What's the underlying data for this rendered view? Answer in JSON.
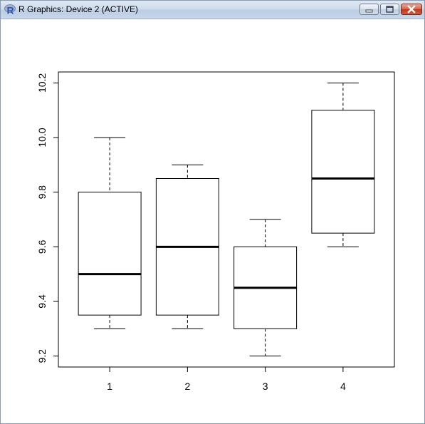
{
  "window": {
    "title": "R Graphics: Device 2 (ACTIVE)",
    "app_icon": "r-logo-icon",
    "buttons": [
      {
        "name": "minimize-button",
        "icon": "minimize-icon"
      },
      {
        "name": "maximize-button",
        "icon": "maximize-icon"
      },
      {
        "name": "close-button",
        "icon": "close-icon"
      }
    ]
  },
  "chart_data": {
    "type": "boxplot",
    "title": "",
    "xlabel": "",
    "ylabel": "",
    "categories": [
      "1",
      "2",
      "3",
      "4"
    ],
    "boxes": [
      {
        "category": "1",
        "min": 9.3,
        "q1": 9.35,
        "median": 9.5,
        "q3": 9.8,
        "max": 10.0
      },
      {
        "category": "2",
        "min": 9.3,
        "q1": 9.35,
        "median": 9.6,
        "q3": 9.85,
        "max": 9.9
      },
      {
        "category": "3",
        "min": 9.2,
        "q1": 9.3,
        "median": 9.45,
        "q3": 9.6,
        "max": 9.7
      },
      {
        "category": "4",
        "min": 9.6,
        "q1": 9.65,
        "median": 9.85,
        "q3": 10.1,
        "max": 10.2
      }
    ],
    "yticks": [
      9.2,
      9.4,
      9.6,
      9.8,
      10.0,
      10.2
    ],
    "ytick_labels": [
      "9.2",
      "9.4",
      "9.6",
      "9.8",
      "10.0",
      "10.2"
    ],
    "ylim": [
      9.16,
      10.24
    ],
    "grid": false,
    "legend": "none"
  }
}
